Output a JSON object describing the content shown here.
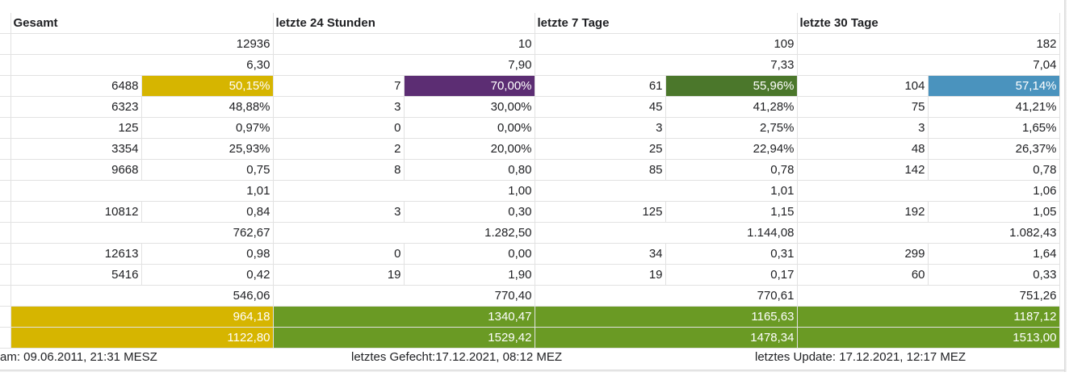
{
  "headers": [
    "Gesamt",
    "letzte 24 Stunden",
    "letzte 7 Tage",
    "letzte 30 Tage"
  ],
  "rows": [
    {
      "kind": "merged",
      "cells": [
        "12936",
        "10",
        "109",
        "182"
      ]
    },
    {
      "kind": "merged",
      "cells": [
        "6,30",
        "7,90",
        "7,33",
        "7,04"
      ]
    },
    {
      "kind": "split",
      "cells": [
        "6488",
        "50,15%",
        "7",
        "70,00%",
        "61",
        "55,96%",
        "104",
        "57,14%"
      ],
      "fills": {
        "1": "#d6b500",
        "3": "#5c2d73",
        "5": "#4b772b",
        "7": "#4a93be"
      }
    },
    {
      "kind": "split",
      "cells": [
        "6323",
        "48,88%",
        "3",
        "30,00%",
        "45",
        "41,28%",
        "75",
        "41,21%"
      ]
    },
    {
      "kind": "split",
      "cells": [
        "125",
        "0,97%",
        "0",
        "0,00%",
        "3",
        "2,75%",
        "3",
        "1,65%"
      ]
    },
    {
      "kind": "split",
      "cells": [
        "3354",
        "25,93%",
        "2",
        "20,00%",
        "25",
        "22,94%",
        "48",
        "26,37%"
      ]
    },
    {
      "kind": "split",
      "cells": [
        "9668",
        "0,75",
        "8",
        "0,80",
        "85",
        "0,78",
        "142",
        "0,78"
      ]
    },
    {
      "kind": "merged",
      "cells": [
        "1,01",
        "1,00",
        "1,01",
        "1,06"
      ]
    },
    {
      "kind": "split",
      "cells": [
        "10812",
        "0,84",
        "3",
        "0,30",
        "125",
        "1,15",
        "192",
        "1,05"
      ]
    },
    {
      "kind": "merged",
      "cells": [
        "762,67",
        "1.282,50",
        "1.144,08",
        "1.082,43"
      ]
    },
    {
      "kind": "split",
      "cells": [
        "12613",
        "0,98",
        "0",
        "0,00",
        "34",
        "0,31",
        "299",
        "1,64"
      ]
    },
    {
      "kind": "split",
      "cells": [
        "5416",
        "0,42",
        "19",
        "1,90",
        "19",
        "0,17",
        "60",
        "0,33"
      ]
    },
    {
      "kind": "merged",
      "cells": [
        "546,06",
        "770,40",
        "770,61",
        "751,26"
      ]
    },
    {
      "kind": "merged",
      "cells": [
        "964,18",
        "1340,47",
        "1165,63",
        "1187,12"
      ],
      "fills": {
        "0": "#d6b500",
        "1": "#6a9a24",
        "2": "#6a9a24",
        "3": "#6a9a24"
      }
    },
    {
      "kind": "merged",
      "cells": [
        "1122,80",
        "1529,42",
        "1478,34",
        "1513,00"
      ],
      "fills": {
        "0": "#d6b500",
        "1": "#6a9a24",
        "2": "#6a9a24",
        "3": "#6a9a24"
      }
    }
  ],
  "footer": {
    "left": "am: 09.06.2011, 21:31 MESZ",
    "center": "letztes Gefecht:17.12.2021, 08:12 MEZ",
    "right": "letztes Update: 17.12.2021, 12:17 MEZ"
  }
}
